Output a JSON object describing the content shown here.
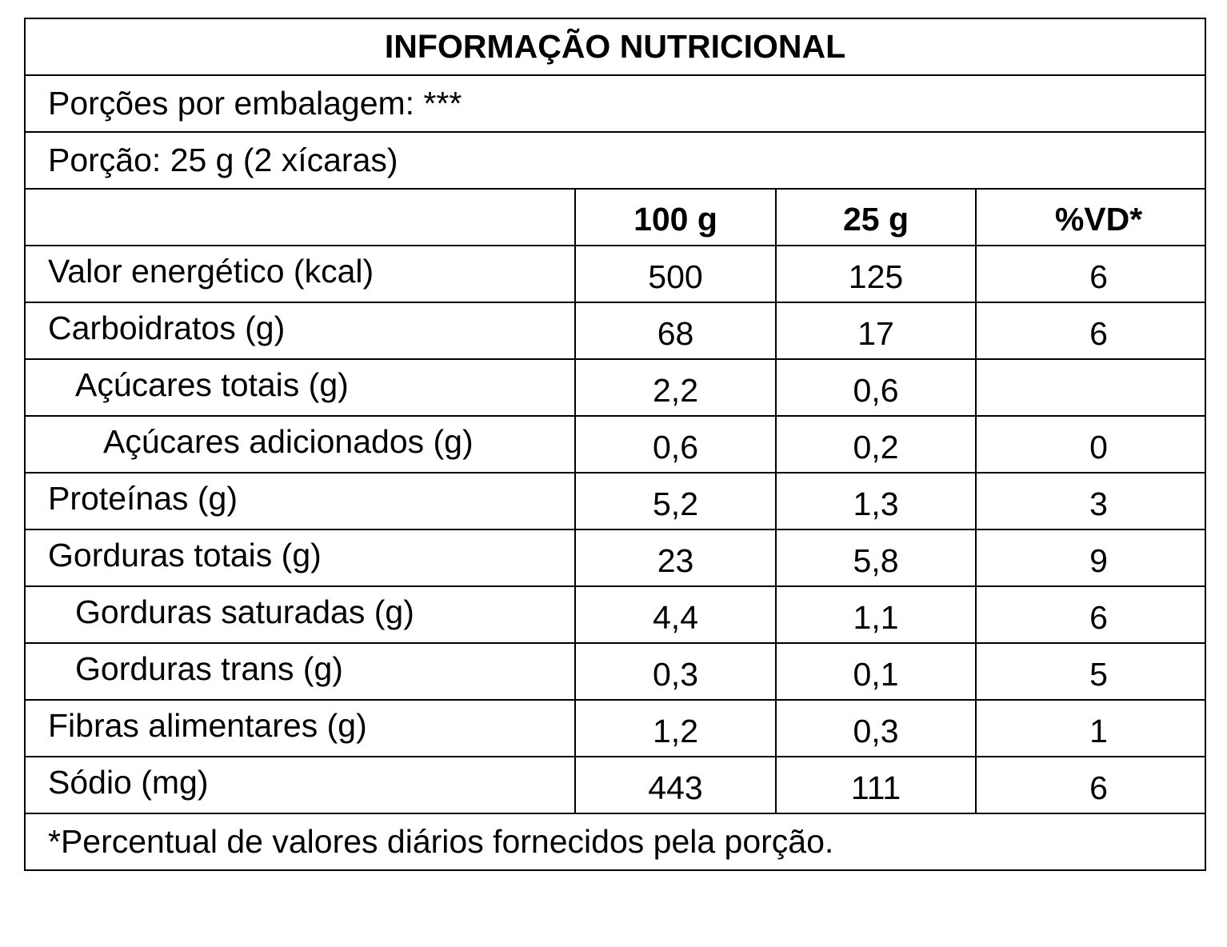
{
  "title": "INFORMAÇÃO NUTRICIONAL",
  "servings_per_package": "Porções por embalagem: ***",
  "serving_size": "Porção: 25 g (2 xícaras)",
  "columns": {
    "label": "",
    "per_100g": "100 g",
    "per_serving": "25 g",
    "daily_value": "%VD*"
  },
  "rows": [
    {
      "name": "Valor energético (kcal)",
      "per_100g": "500",
      "per_serving": "125",
      "dv": "6"
    },
    {
      "name": "Carboidratos (g)",
      "per_100g": "68",
      "per_serving": "17",
      "dv": "6"
    },
    {
      "name": "Açúcares totais (g)",
      "per_100g": "2,2",
      "per_serving": "0,6",
      "dv": ""
    },
    {
      "name": "Açúcares adicionados (g)",
      "per_100g": "0,6",
      "per_serving": "0,2",
      "dv": "0"
    },
    {
      "name": "Proteínas (g)",
      "per_100g": "5,2",
      "per_serving": "1,3",
      "dv": "3"
    },
    {
      "name": "Gorduras totais (g)",
      "per_100g": "23",
      "per_serving": "5,8",
      "dv": "9"
    },
    {
      "name": "Gorduras saturadas (g)",
      "per_100g": "4,4",
      "per_serving": "1,1",
      "dv": "6"
    },
    {
      "name": "Gorduras trans (g)",
      "per_100g": "0,3",
      "per_serving": "0,1",
      "dv": "5"
    },
    {
      "name": "Fibras alimentares (g)",
      "per_100g": "1,2",
      "per_serving": "0,3",
      "dv": "1"
    },
    {
      "name": "Sódio (mg)",
      "per_100g": "443",
      "per_serving": "111",
      "dv": "6"
    }
  ],
  "footnote": "*Percentual de valores diários fornecidos pela porção."
}
